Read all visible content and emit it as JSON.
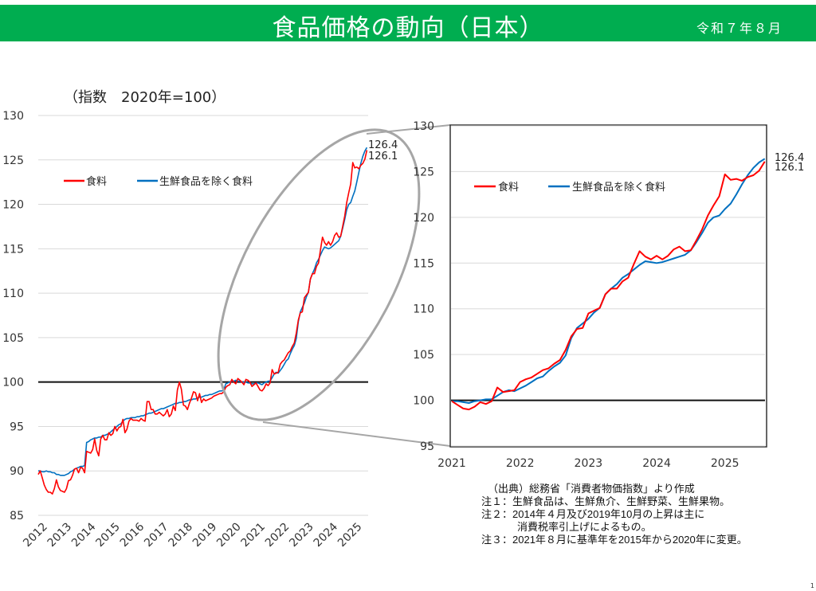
{
  "header": {
    "title": "食品価格の動向（日本）",
    "date": "令和７年８月",
    "color": "#00ad50"
  },
  "notes": {
    "source": "（出典）総務省「消費者物価指数」より作成",
    "note1": "注１：生鮮食品は、生鮮魚介、生鮮野菜、生鮮果物。",
    "note2_line1": "注２：2014年４月及び2019年10月の上昇は主に",
    "note2_line2": "消費税率引上げによるもの。",
    "note3": "注３：2021年８月に基準年を2015年から2020年に変更。"
  },
  "page_number": "1",
  "chart_data": [
    {
      "type": "line",
      "title": "",
      "unit_label": "（指数　2020年=100）",
      "xlabel": "",
      "ylabel": "",
      "ylim": [
        85,
        130
      ],
      "yticks": [
        "85",
        "90",
        "95",
        "100",
        "105",
        "110",
        "115",
        "120",
        "125",
        "130"
      ],
      "xticks": [
        "2012",
        "2013",
        "2014",
        "2015",
        "2016",
        "2017",
        "2018",
        "2019",
        "2020",
        "2021",
        "2022",
        "2023",
        "2024",
        "2025"
      ],
      "x_start": "2012-01",
      "x_frequency": "monthly",
      "grid": true,
      "reference_line": 100,
      "legend_position": "top-left",
      "end_labels": [
        "126.4",
        "126.1"
      ],
      "annotation": "zoom ellipse around 2020–2025",
      "series": [
        {
          "name": "食料",
          "color": "#ff0000",
          "values": [
            89.6,
            90.0,
            89.2,
            88.4,
            87.9,
            87.6,
            87.6,
            87.4,
            88.0,
            89.0,
            88.2,
            87.8,
            87.7,
            87.6,
            88.0,
            88.9,
            89.0,
            89.5,
            90.2,
            90.3,
            89.8,
            90.4,
            90.3,
            89.8,
            92.2,
            92.1,
            92.0,
            92.4,
            93.6,
            92.3,
            91.7,
            93.6,
            94.0,
            93.5,
            93.5,
            94.3,
            94.0,
            94.2,
            95.0,
            94.5,
            94.9,
            95.0,
            95.8,
            94.3,
            94.7,
            95.6,
            95.9,
            95.7,
            95.7,
            95.7,
            95.6,
            95.9,
            95.7,
            95.6,
            97.8,
            97.8,
            96.9,
            96.9,
            96.4,
            96.4,
            96.6,
            96.4,
            96.2,
            96.4,
            96.9,
            96.1,
            96.4,
            97.3,
            96.8,
            99.1,
            100.0,
            99.2,
            97.4,
            97.3,
            96.9,
            97.6,
            98.2,
            98.9,
            98.8,
            97.9,
            98.7,
            97.7,
            98.1,
            97.9,
            98.0,
            98.1,
            98.2,
            98.4,
            98.5,
            98.6,
            98.7,
            98.7,
            98.9,
            99.4,
            99.6,
            99.7,
            100.3,
            100.0,
            99.8,
            100.4,
            100.2,
            100.0,
            99.7,
            100.3,
            100.2,
            100.0,
            99.5,
            99.7,
            99.9,
            99.5,
            99.1,
            99.0,
            99.3,
            99.8,
            99.6,
            99.9,
            101.4,
            100.9,
            101.0,
            101.1,
            102.0,
            102.3,
            102.5,
            102.9,
            103.3,
            103.5,
            104.0,
            104.4,
            105.5,
            107.0,
            107.8,
            107.9,
            109.5,
            109.8,
            110.1,
            111.6,
            112.2,
            112.2,
            113.0,
            113.4,
            114.9,
            116.3,
            115.7,
            115.4,
            115.8,
            115.4,
            115.8,
            116.5,
            116.8,
            116.3,
            116.4,
            117.5,
            118.7,
            120.2,
            121.3,
            122.3,
            124.7,
            124.1,
            124.2,
            124.0,
            124.4,
            124.6,
            125.1,
            126.1
          ]
        },
        {
          "name": "生鮮食品を除く食料",
          "color": "#0070c0",
          "values": [
            90.0,
            90.0,
            89.9,
            89.9,
            90.0,
            89.9,
            89.9,
            89.8,
            89.8,
            89.6,
            89.6,
            89.5,
            89.5,
            89.5,
            89.6,
            89.7,
            89.9,
            90.0,
            90.2,
            90.3,
            90.4,
            90.5,
            90.5,
            90.6,
            93.2,
            93.3,
            93.5,
            93.6,
            93.7,
            93.7,
            93.8,
            93.8,
            94.0,
            94.0,
            94.1,
            94.2,
            94.4,
            94.6,
            94.8,
            95.0,
            95.2,
            95.3,
            95.6,
            95.8,
            95.9,
            95.9,
            96.0,
            96.0,
            96.0,
            96.1,
            96.1,
            96.2,
            96.2,
            96.3,
            96.4,
            96.5,
            96.5,
            96.6,
            96.7,
            96.8,
            96.9,
            97.0,
            97.0,
            97.1,
            97.2,
            97.3,
            97.4,
            97.5,
            97.6,
            97.6,
            97.7,
            97.7,
            97.8,
            97.8,
            97.9,
            98.0,
            98.0,
            98.1,
            98.1,
            98.2,
            98.3,
            98.3,
            98.4,
            98.5,
            98.5,
            98.6,
            98.6,
            98.7,
            98.8,
            98.9,
            99.0,
            99.0,
            99.1,
            99.8,
            99.9,
            100.0,
            100.1,
            100.1,
            100.2,
            100.1,
            100.1,
            100.0,
            100.0,
            100.0,
            99.9,
            99.9,
            99.8,
            99.8,
            99.9,
            99.9,
            99.8,
            99.7,
            99.9,
            100.0,
            100.1,
            100.1,
            100.5,
            100.9,
            101.1,
            101.0,
            101.3,
            101.6,
            102.0,
            102.4,
            102.6,
            103.2,
            103.7,
            104.1,
            104.9,
            106.8,
            107.9,
            108.4,
            108.9,
            109.6,
            110.1,
            111.6,
            112.2,
            112.7,
            113.4,
            113.8,
            114.3,
            114.8,
            115.2,
            115.1,
            115.0,
            115.1,
            115.3,
            115.5,
            115.7,
            115.9,
            116.4,
            117.3,
            118.3,
            119.4,
            120.0,
            120.2,
            120.9,
            121.5,
            122.5,
            123.6,
            124.6,
            125.4,
            126.0,
            126.4
          ]
        }
      ]
    },
    {
      "type": "line",
      "title": "",
      "xlabel": "",
      "ylabel": "",
      "ylim": [
        95,
        130
      ],
      "yticks": [
        "95",
        "100",
        "105",
        "110",
        "115",
        "120",
        "125",
        "130"
      ],
      "xticks": [
        "2021",
        "2022",
        "2023",
        "2024",
        "2025"
      ],
      "x_start": "2021-01",
      "x_frequency": "monthly",
      "grid": true,
      "reference_line": 100,
      "legend_position": "top-left",
      "end_labels": [
        "126.4",
        "126.1"
      ],
      "series": [
        {
          "name": "食料",
          "color": "#ff0000",
          "values": [
            99.9,
            99.5,
            99.1,
            99.0,
            99.3,
            99.8,
            99.6,
            99.9,
            101.4,
            100.9,
            101.0,
            101.1,
            102.0,
            102.3,
            102.5,
            102.9,
            103.3,
            103.5,
            104.0,
            104.4,
            105.5,
            107.0,
            107.8,
            107.9,
            109.5,
            109.8,
            110.1,
            111.6,
            112.2,
            112.2,
            113.0,
            113.4,
            114.9,
            116.3,
            115.7,
            115.4,
            115.8,
            115.4,
            115.8,
            116.5,
            116.8,
            116.3,
            116.4,
            117.5,
            118.7,
            120.2,
            121.3,
            122.3,
            124.7,
            124.1,
            124.2,
            124.0,
            124.4,
            124.6,
            125.1,
            126.1
          ]
        },
        {
          "name": "生鮮食品を除く食料",
          "color": "#0070c0",
          "values": [
            99.9,
            99.9,
            99.8,
            99.7,
            99.9,
            100.0,
            100.1,
            100.1,
            100.5,
            100.9,
            101.1,
            101.0,
            101.3,
            101.6,
            102.0,
            102.4,
            102.6,
            103.2,
            103.7,
            104.1,
            104.9,
            106.8,
            107.9,
            108.4,
            108.9,
            109.6,
            110.1,
            111.6,
            112.2,
            112.7,
            113.4,
            113.8,
            114.3,
            114.8,
            115.2,
            115.1,
            115.0,
            115.1,
            115.3,
            115.5,
            115.7,
            115.9,
            116.4,
            117.3,
            118.3,
            119.4,
            120.0,
            120.2,
            120.9,
            121.5,
            122.5,
            123.6,
            124.6,
            125.4,
            126.0,
            126.4
          ]
        }
      ]
    }
  ]
}
